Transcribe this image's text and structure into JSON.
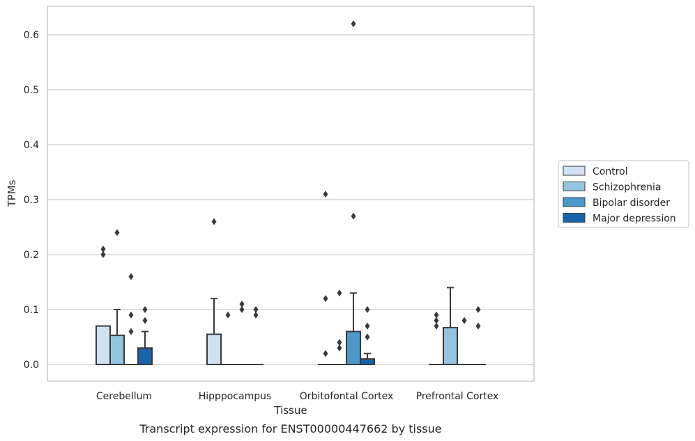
{
  "chart_data": {
    "type": "box",
    "caption": "Transcript expression for ENST00000447662 by tissue",
    "xlabel": "Tissue",
    "ylabel": "TPMs",
    "ylim": [
      -0.03,
      0.65
    ],
    "yticks": [
      0.0,
      0.1,
      0.2,
      0.3,
      0.4,
      0.5,
      0.6
    ],
    "ytick_labels": [
      "0.0",
      "0.1",
      "0.2",
      "0.3",
      "0.4",
      "0.5",
      "0.6"
    ],
    "grid": true,
    "legend_position": "outside-right",
    "categories": [
      "Cerebellum",
      "Hipppocampus",
      "Orbitofontal Cortex",
      "Prefrontal Cortex"
    ],
    "series": [
      {
        "name": "Control",
        "color": "#d0e1f2",
        "boxes": [
          {
            "q1": 0.0,
            "median": 0.0,
            "q3": 0.07,
            "whisker_low": 0.0,
            "whisker_high": 0.07,
            "outliers": [
              0.2,
              0.21
            ]
          },
          {
            "q1": 0.0,
            "median": 0.0,
            "q3": 0.055,
            "whisker_low": 0.0,
            "whisker_high": 0.12,
            "outliers": [
              0.26
            ]
          },
          {
            "q1": 0.0,
            "median": 0.0,
            "q3": 0.0,
            "whisker_low": 0.0,
            "whisker_high": 0.0,
            "outliers": [
              0.02,
              0.12,
              0.31
            ]
          },
          {
            "q1": 0.0,
            "median": 0.0,
            "q3": 0.0,
            "whisker_low": 0.0,
            "whisker_high": 0.0,
            "outliers": [
              0.07,
              0.08,
              0.09
            ]
          }
        ]
      },
      {
        "name": "Schizophrenia",
        "color": "#94c4df",
        "boxes": [
          {
            "q1": 0.0,
            "median": 0.0,
            "q3": 0.053,
            "whisker_low": 0.0,
            "whisker_high": 0.1,
            "outliers": [
              0.24
            ]
          },
          {
            "q1": 0.0,
            "median": 0.0,
            "q3": 0.0,
            "whisker_low": 0.0,
            "whisker_high": 0.0,
            "outliers": [
              0.09
            ]
          },
          {
            "q1": 0.0,
            "median": 0.0,
            "q3": 0.0,
            "whisker_low": 0.0,
            "whisker_high": 0.0,
            "outliers": [
              0.03,
              0.04,
              0.13
            ]
          },
          {
            "q1": 0.0,
            "median": 0.0,
            "q3": 0.067,
            "whisker_low": 0.0,
            "whisker_high": 0.14,
            "outliers": []
          }
        ]
      },
      {
        "name": "Bipolar disorder",
        "color": "#4a98c9",
        "boxes": [
          {
            "q1": 0.0,
            "median": 0.0,
            "q3": 0.0,
            "whisker_low": 0.0,
            "whisker_high": 0.0,
            "outliers": [
              0.06,
              0.09,
              0.16
            ]
          },
          {
            "q1": 0.0,
            "median": 0.0,
            "q3": 0.0,
            "whisker_low": 0.0,
            "whisker_high": 0.0,
            "outliers": [
              0.1,
              0.11
            ]
          },
          {
            "q1": 0.0,
            "median": 0.0,
            "q3": 0.06,
            "whisker_low": 0.0,
            "whisker_high": 0.13,
            "outliers": [
              0.27,
              0.62
            ]
          },
          {
            "q1": 0.0,
            "median": 0.0,
            "q3": 0.0,
            "whisker_low": 0.0,
            "whisker_high": 0.0,
            "outliers": [
              0.08
            ]
          }
        ]
      },
      {
        "name": "Major depression",
        "color": "#1764ab",
        "boxes": [
          {
            "q1": 0.0,
            "median": 0.0,
            "q3": 0.03,
            "whisker_low": 0.0,
            "whisker_high": 0.06,
            "outliers": [
              0.08,
              0.1
            ]
          },
          {
            "q1": 0.0,
            "median": 0.0,
            "q3": 0.0,
            "whisker_low": 0.0,
            "whisker_high": 0.0,
            "outliers": [
              0.09,
              0.1
            ]
          },
          {
            "q1": 0.0,
            "median": 0.0,
            "q3": 0.01,
            "whisker_low": 0.0,
            "whisker_high": 0.02,
            "outliers": [
              0.05,
              0.07,
              0.1
            ]
          },
          {
            "q1": 0.0,
            "median": 0.0,
            "q3": 0.0,
            "whisker_low": 0.0,
            "whisker_high": 0.0,
            "outliers": [
              0.07,
              0.1
            ]
          }
        ]
      }
    ]
  }
}
